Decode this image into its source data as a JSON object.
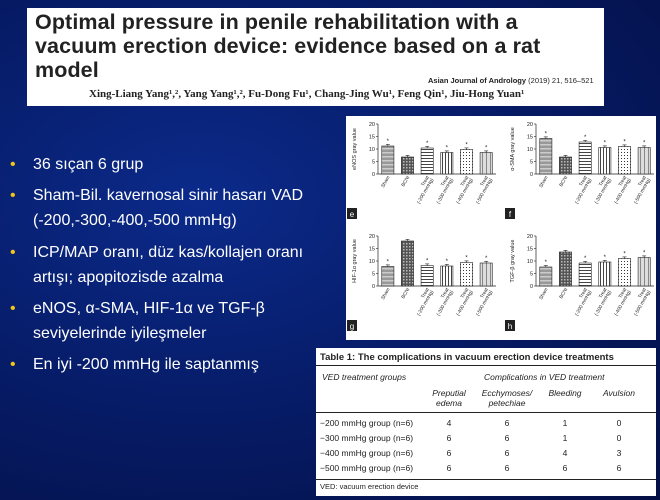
{
  "paper": {
    "title": "Optimal pressure in penile rehabilitation with a vacuum erection device: evidence based on a rat model",
    "journal_name": "Asian Journal of Andrology",
    "journal_ref": " (2019) 21, 516–521",
    "authors": "Xing-Liang Yang¹,², Yang Yang¹,², Fu-Dong Fu¹, Chang-Jing Wu¹, Feng Qin¹, Jiu-Hong Yuan¹"
  },
  "bullets": [
    {
      "marker": "•",
      "text": "36 sıçan 6 grup"
    },
    {
      "marker": "•",
      "text": "Sham-Bil. kavernosal sinir hasarı VAD (-200,-300,-400,-500 mmHg)"
    },
    {
      "marker": "•",
      "text": "ICP/MAP oranı, düz kas/kollajen oranı artışı; apopitozisde azalma"
    },
    {
      "marker": "•",
      "text": "eNOS,  α-SMA, HIF-1α ve TGF-β seviyelerinde iyileşmeler"
    },
    {
      "marker": "•",
      "text": "En iyi -200 mmHg ile saptanmış"
    }
  ],
  "chart_data": [
    {
      "type": "bar",
      "panel": "e",
      "ylabel": "eNOS gray value",
      "ylim": [
        0,
        20
      ],
      "yticks": [
        "0",
        "5",
        "10",
        "15",
        "20"
      ],
      "categories": [
        "Sham",
        "BCNI",
        "Treat (-200 mmHg)",
        "Treat (-300 mmHg)",
        "Treat (-400 mmHg)",
        "Treat (-500 mmHg)"
      ],
      "values": [
        11.2,
        6.8,
        10.4,
        8.6,
        9.8,
        8.6
      ],
      "annotations": [
        "*",
        "",
        "*",
        "*",
        "*",
        "*"
      ]
    },
    {
      "type": "bar",
      "panel": "f",
      "ylabel": "α-SMA gray value",
      "ylim": [
        0,
        20
      ],
      "yticks": [
        "0",
        "5",
        "10",
        "15",
        "20"
      ],
      "categories": [
        "Sham",
        "BCNI",
        "Treat (-200 mmHg)",
        "Treat (-300 mmHg)",
        "Treat (-400 mmHg)",
        "Treat (-500 mmHg)"
      ],
      "values": [
        14.2,
        6.8,
        12.8,
        10.6,
        11.0,
        10.6
      ],
      "annotations": [
        "*",
        "",
        "*",
        "*",
        "*",
        "*"
      ]
    },
    {
      "type": "bar",
      "panel": "g",
      "ylabel": "HIF-1α gray value",
      "ylim": [
        0,
        20
      ],
      "yticks": [
        "0",
        "5",
        "10",
        "15",
        "20"
      ],
      "categories": [
        "Sham",
        "BCNI",
        "Treat (-200 mmHg)",
        "Treat (-300 mmHg)",
        "Treat (-400 mmHg)",
        "Treat (-500 mmHg)"
      ],
      "values": [
        7.8,
        18.0,
        8.2,
        8.0,
        9.4,
        9.2
      ],
      "annotations": [
        "*",
        "",
        "*",
        "*",
        "*",
        "*"
      ]
    },
    {
      "type": "bar",
      "panel": "h",
      "ylabel": "TGF-β gray value",
      "ylim": [
        0,
        20
      ],
      "yticks": [
        "0",
        "5",
        "10",
        "15",
        "20"
      ],
      "categories": [
        "Sham",
        "BCNI",
        "Treat (-200 mmHg)",
        "Treat (-300 mmHg)",
        "Treat (-400 mmHg)",
        "Treat (-500 mmHg)"
      ],
      "values": [
        7.6,
        13.6,
        9.2,
        9.6,
        11.0,
        11.4
      ],
      "annotations": [
        "*",
        "",
        "*",
        "*",
        "*",
        "*"
      ]
    }
  ],
  "table": {
    "title": "Table 1: The complications in vacuum erection device treatments",
    "col_group": "VED treatment groups",
    "col_span_header": "Complications in VED treatment",
    "sub_headers": [
      "Preputial edema",
      "Ecchymoses/ petechiae",
      "Bleeding",
      "Avulsion"
    ],
    "rows": [
      {
        "group": "−200 mmHg group (n=6)",
        "values": [
          "4",
          "6",
          "1",
          "0"
        ]
      },
      {
        "group": "−300 mmHg group (n=6)",
        "values": [
          "6",
          "6",
          "1",
          "0"
        ]
      },
      {
        "group": "−400 mmHg group (n=6)",
        "values": [
          "6",
          "6",
          "4",
          "3"
        ]
      },
      {
        "group": "−500 mmHg group (n=6)",
        "values": [
          "6",
          "6",
          "6",
          "6"
        ]
      }
    ],
    "footnote": "VED: vacuum erection device"
  }
}
